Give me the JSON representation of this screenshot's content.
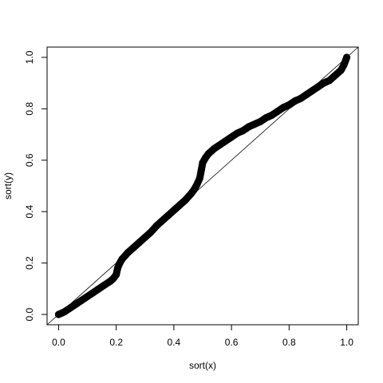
{
  "chart_data": {
    "type": "scatter",
    "xlabel": "sort(x)",
    "ylabel": "sort(y)",
    "x": [
      0.0,
      0.02,
      0.04,
      0.06,
      0.08,
      0.1,
      0.12,
      0.14,
      0.16,
      0.18,
      0.19,
      0.2,
      0.205,
      0.21,
      0.22,
      0.24,
      0.26,
      0.28,
      0.3,
      0.32,
      0.34,
      0.36,
      0.38,
      0.4,
      0.42,
      0.44,
      0.46,
      0.47,
      0.48,
      0.49,
      0.495,
      0.5,
      0.51,
      0.52,
      0.54,
      0.56,
      0.58,
      0.6,
      0.62,
      0.64,
      0.66,
      0.68,
      0.7,
      0.72,
      0.74,
      0.76,
      0.78,
      0.8,
      0.82,
      0.84,
      0.86,
      0.88,
      0.9,
      0.92,
      0.94,
      0.96,
      0.98,
      0.99,
      1.0
    ],
    "values": [
      0.0,
      0.01,
      0.025,
      0.04,
      0.055,
      0.07,
      0.085,
      0.1,
      0.115,
      0.13,
      0.14,
      0.155,
      0.18,
      0.195,
      0.215,
      0.24,
      0.26,
      0.28,
      0.3,
      0.32,
      0.345,
      0.365,
      0.385,
      0.405,
      0.425,
      0.445,
      0.47,
      0.485,
      0.505,
      0.53,
      0.56,
      0.59,
      0.61,
      0.625,
      0.645,
      0.66,
      0.675,
      0.69,
      0.705,
      0.715,
      0.73,
      0.74,
      0.75,
      0.765,
      0.775,
      0.79,
      0.805,
      0.815,
      0.83,
      0.84,
      0.855,
      0.87,
      0.885,
      0.9,
      0.91,
      0.93,
      0.95,
      0.97,
      1.0
    ],
    "color": "#000000",
    "xlim": [
      -0.04,
      1.04
    ],
    "ylim": [
      -0.04,
      1.04
    ],
    "xticks": [
      {
        "value": 0,
        "label": "0.0"
      },
      0.2,
      0.4,
      0.6,
      0.8,
      {
        "value": 1,
        "label": "1.0"
      }
    ],
    "yticks": [
      {
        "value": 0,
        "label": "0.0"
      },
      0.2,
      0.4,
      0.6,
      0.8,
      {
        "value": 1,
        "label": "1.0"
      }
    ]
  }
}
